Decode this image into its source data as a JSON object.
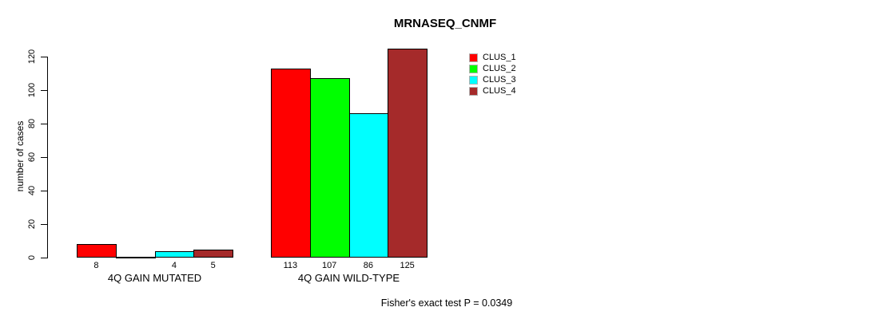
{
  "title": "MRNASEQ_CNMF",
  "y_axis": {
    "label": "number of cases",
    "tick_labels": [
      "0",
      "20",
      "40",
      "60",
      "80",
      "100",
      "120"
    ]
  },
  "legend": [
    {
      "label": "CLUS_1",
      "color": "#ff0000"
    },
    {
      "label": "CLUS_2",
      "color": "#00ff00"
    },
    {
      "label": "CLUS_3",
      "color": "#00ffff"
    },
    {
      "label": "CLUS_4",
      "color": "#a52a2a"
    }
  ],
  "footer": "Fisher's exact test P = 0.0349",
  "chart_data": {
    "type": "bar",
    "categories": [
      "4Q GAIN MUTATED",
      "4Q GAIN WILD-TYPE"
    ],
    "series": [
      {
        "name": "CLUS_1",
        "color": "#ff0000",
        "values": [
          8,
          113
        ]
      },
      {
        "name": "CLUS_2",
        "color": "#00ff00",
        "values": [
          0,
          107
        ]
      },
      {
        "name": "CLUS_3",
        "color": "#00ffff",
        "values": [
          4,
          86
        ]
      },
      {
        "name": "CLUS_4",
        "color": "#a52a2a",
        "values": [
          5,
          125
        ]
      }
    ],
    "bar_value_labels": [
      [
        "8",
        "",
        "4",
        "5"
      ],
      [
        "113",
        "107",
        "86",
        "125"
      ]
    ],
    "title": "MRNASEQ_CNMF",
    "xlabel": "",
    "ylabel": "number of cases",
    "yticks": [
      0,
      20,
      40,
      60,
      80,
      100,
      120
    ],
    "ylim": [
      0,
      125
    ],
    "grid": false,
    "legend_position": "top-right",
    "annotation": "Fisher's exact test P = 0.0349"
  }
}
